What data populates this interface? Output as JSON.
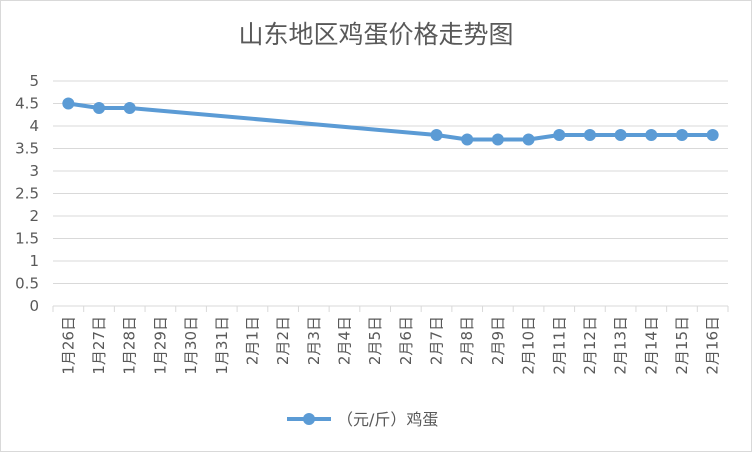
{
  "chart_data": {
    "type": "line",
    "title": "山东地区鸡蛋价格走势图",
    "categories": [
      "1月26日",
      "1月27日",
      "1月28日",
      "1月29日",
      "1月30日",
      "1月31日",
      "2月1日",
      "2月2日",
      "2月3日",
      "2月4日",
      "2月5日",
      "2月6日",
      "2月7日",
      "2月8日",
      "2月9日",
      "2月10日",
      "2月11日",
      "2月12日",
      "2月13日",
      "2月14日",
      "2月15日",
      "2月16日"
    ],
    "series": [
      {
        "name": "（元/斤）鸡蛋",
        "color": "#5b9bd5",
        "values": [
          4.5,
          4.4,
          4.4,
          null,
          null,
          null,
          null,
          null,
          null,
          null,
          null,
          null,
          3.8,
          3.7,
          3.7,
          3.7,
          3.8,
          3.8,
          3.8,
          3.8,
          3.8,
          3.8
        ]
      }
    ],
    "ylim": [
      0,
      5
    ],
    "yticks": [
      "0",
      "0.5",
      "1",
      "1.5",
      "2",
      "2.5",
      "3",
      "3.5",
      "4",
      "4.5",
      "5"
    ],
    "grid": true,
    "legend": "bottom"
  }
}
